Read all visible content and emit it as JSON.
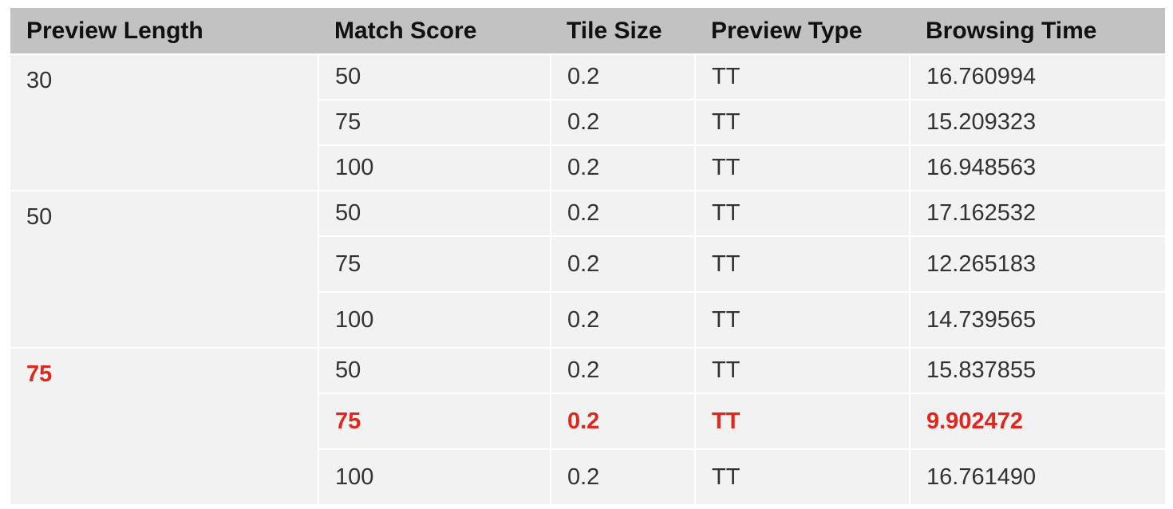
{
  "table": {
    "headers": [
      "Preview Length",
      "Match Score",
      "Tile Size",
      "Preview Type",
      "Browsing Time"
    ],
    "groups": [
      {
        "preview_length": "30",
        "rows": [
          {
            "match_score": "50",
            "tile_size": "0.2",
            "preview_type": "TT",
            "browsing_time": "16.760994"
          },
          {
            "match_score": "75",
            "tile_size": "0.2",
            "preview_type": "TT",
            "browsing_time": "15.209323"
          },
          {
            "match_score": "100",
            "tile_size": "0.2",
            "preview_type": "TT",
            "browsing_time": "16.948563"
          }
        ]
      },
      {
        "preview_length": "50",
        "rows": [
          {
            "match_score": "50",
            "tile_size": "0.2",
            "preview_type": "TT",
            "browsing_time": "17.162532"
          },
          {
            "match_score": "75",
            "tile_size": "0.2",
            "preview_type": "TT",
            "browsing_time": "12.265183"
          },
          {
            "match_score": "100",
            "tile_size": "0.2",
            "preview_type": "TT",
            "browsing_time": "14.739565"
          }
        ]
      },
      {
        "preview_length": "75",
        "rows": [
          {
            "match_score": "50",
            "tile_size": "0.2",
            "preview_type": "TT",
            "browsing_time": "15.837855"
          },
          {
            "match_score": "75",
            "tile_size": "0.2",
            "preview_type": "TT",
            "browsing_time": "9.902472"
          },
          {
            "match_score": "100",
            "tile_size": "0.2",
            "preview_type": "TT",
            "browsing_time": "16.761490"
          }
        ]
      }
    ],
    "highlight_color": "#e3261b"
  }
}
